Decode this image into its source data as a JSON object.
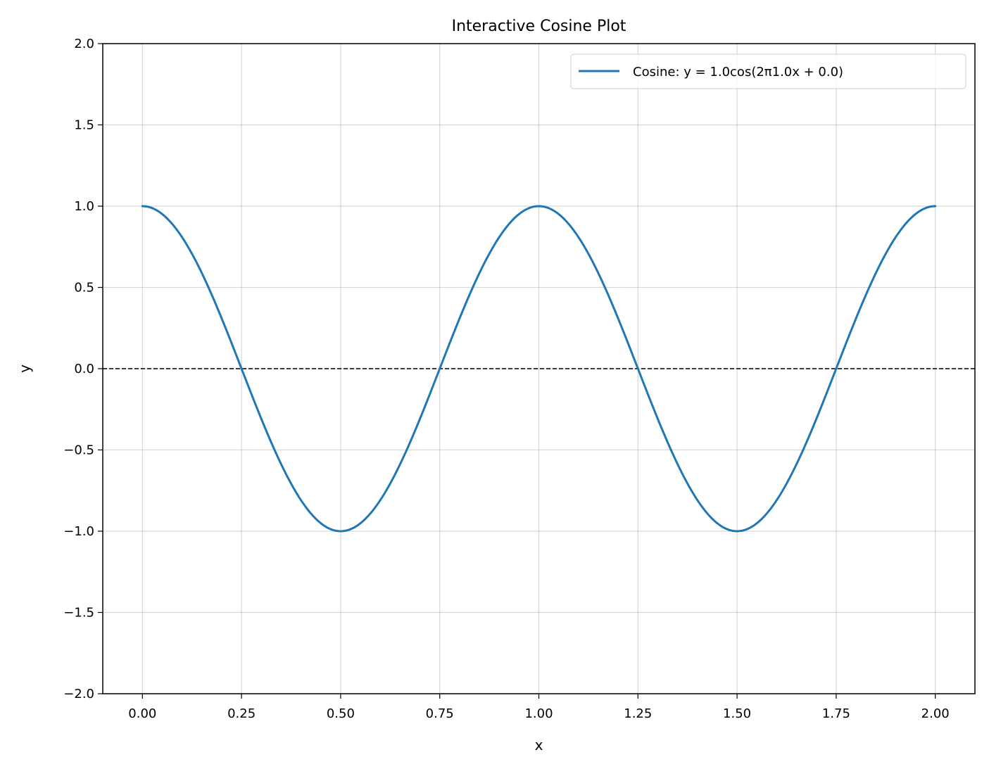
{
  "chart_data": {
    "type": "line",
    "title": "Interactive Cosine Plot",
    "xlabel": "x",
    "ylabel": "y",
    "xlim": [
      -0.1,
      2.1
    ],
    "ylim": [
      -2.0,
      2.0
    ],
    "grid": true,
    "legend_position": "upper-right",
    "xticks": [
      0.0,
      0.25,
      0.5,
      0.75,
      1.0,
      1.25,
      1.5,
      1.75,
      2.0
    ],
    "xtick_labels": [
      "0.00",
      "0.25",
      "0.50",
      "0.75",
      "1.00",
      "1.25",
      "1.50",
      "1.75",
      "2.00"
    ],
    "yticks": [
      -2.0,
      -1.5,
      -1.0,
      -0.5,
      0.0,
      0.5,
      1.0,
      1.5,
      2.0
    ],
    "ytick_labels": [
      "−2.0",
      "−1.5",
      "−1.0",
      "−0.5",
      "0.0",
      "0.5",
      "1.0",
      "1.5",
      "2.0"
    ],
    "reference_line": {
      "y": 0.0,
      "style": "dashed",
      "color": "#000000"
    },
    "series": [
      {
        "name": "Cosine: y = 1.0cos(2π1.0x + 0.0)",
        "color": "#1f77b4",
        "function": "cosine",
        "amplitude": 1.0,
        "frequency": 1.0,
        "phase": 0.0,
        "x_range": [
          0.0,
          2.0
        ],
        "samples": 400
      }
    ]
  }
}
